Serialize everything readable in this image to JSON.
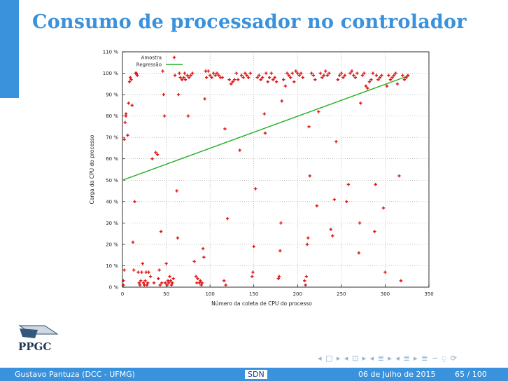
{
  "slide": {
    "title": "Consumo de processador no controlador"
  },
  "footer": {
    "author": "Gustavo Pantuza (DCC - UFMG)",
    "short_title": "SDN",
    "date": "06 de Julho de 2015",
    "page": "65 / 100"
  },
  "logo": {
    "text": "PPGC"
  },
  "nav": {
    "symbols": "◂ □ ▸  ◂ ⊡ ▸  ◂ ≣ ▸  ◂ ≣ ▸   ≣   ∽ ⍜ ⟳"
  },
  "colors": {
    "accent": "#3a91dc",
    "series_sample": "#e01818",
    "series_regression": "#20b020"
  },
  "chart_data": {
    "type": "scatter",
    "xlabel": "Número da coleta de CPU do processo",
    "ylabel": "Carga da CPU do processo",
    "xlim": [
      0,
      350
    ],
    "ylim": [
      0,
      110
    ],
    "x_ticks": [
      0,
      50,
      100,
      150,
      200,
      250,
      300,
      350
    ],
    "y_ticks": [
      0,
      10,
      20,
      30,
      40,
      50,
      60,
      70,
      80,
      90,
      100,
      110
    ],
    "x_tick_labels": [
      "0",
      "50",
      "100",
      "150",
      "200",
      "250",
      "300",
      "350"
    ],
    "y_tick_labels": [
      "0 %",
      "10 %",
      "20 %",
      "30 %",
      "40 %",
      "50 %",
      "60 %",
      "70 %",
      "80 %",
      "90 %",
      "100 %",
      "110 %"
    ],
    "grid": true,
    "legend_position": "top-left",
    "series": [
      {
        "name": "Amostra",
        "kind": "points",
        "points": [
          [
            1,
            1
          ],
          [
            1,
            3
          ],
          [
            2,
            69
          ],
          [
            2,
            8
          ],
          [
            3,
            77
          ],
          [
            4,
            80
          ],
          [
            4,
            81
          ],
          [
            6,
            71
          ],
          [
            7,
            86
          ],
          [
            8,
            96
          ],
          [
            9,
            98
          ],
          [
            10,
            97
          ],
          [
            11,
            85
          ],
          [
            12,
            21
          ],
          [
            13,
            8
          ],
          [
            14,
            40
          ],
          [
            15,
            100
          ],
          [
            16,
            100
          ],
          [
            17,
            99
          ],
          [
            18,
            7
          ],
          [
            19,
            2
          ],
          [
            20,
            1
          ],
          [
            21,
            3
          ],
          [
            22,
            7
          ],
          [
            23,
            11
          ],
          [
            24,
            2
          ],
          [
            25,
            1
          ],
          [
            26,
            3
          ],
          [
            27,
            7
          ],
          [
            28,
            1
          ],
          [
            29,
            2
          ],
          [
            30,
            7
          ],
          [
            32,
            5
          ],
          [
            34,
            60
          ],
          [
            36,
            2
          ],
          [
            38,
            63
          ],
          [
            40,
            62
          ],
          [
            41,
            4
          ],
          [
            42,
            8
          ],
          [
            43,
            1
          ],
          [
            44,
            26
          ],
          [
            45,
            2
          ],
          [
            46,
            101
          ],
          [
            47,
            90
          ],
          [
            48,
            80
          ],
          [
            49,
            2
          ],
          [
            50,
            11
          ],
          [
            51,
            1
          ],
          [
            52,
            3
          ],
          [
            53,
            2
          ],
          [
            54,
            5
          ],
          [
            55,
            3
          ],
          [
            56,
            1
          ],
          [
            57,
            2
          ],
          [
            58,
            4
          ],
          [
            60,
            99
          ],
          [
            62,
            45
          ],
          [
            63,
            23
          ],
          [
            64,
            90
          ],
          [
            65,
            100
          ],
          [
            66,
            98
          ],
          [
            68,
            97
          ],
          [
            70,
            98
          ],
          [
            71,
            100
          ],
          [
            72,
            97
          ],
          [
            74,
            99
          ],
          [
            75,
            80
          ],
          [
            76,
            98
          ],
          [
            78,
            99
          ],
          [
            80,
            100
          ],
          [
            82,
            12
          ],
          [
            84,
            5
          ],
          [
            85,
            2
          ],
          [
            86,
            4
          ],
          [
            88,
            2
          ],
          [
            89,
            3
          ],
          [
            90,
            1
          ],
          [
            91,
            2
          ],
          [
            92,
            18
          ],
          [
            93,
            14
          ],
          [
            94,
            88
          ],
          [
            95,
            101
          ],
          [
            96,
            98
          ],
          [
            98,
            101
          ],
          [
            100,
            99
          ],
          [
            102,
            98
          ],
          [
            104,
            100
          ],
          [
            106,
            99
          ],
          [
            108,
            100
          ],
          [
            110,
            99
          ],
          [
            112,
            98
          ],
          [
            114,
            98
          ],
          [
            116,
            3
          ],
          [
            117,
            74
          ],
          [
            118,
            1
          ],
          [
            120,
            32
          ],
          [
            122,
            97
          ],
          [
            124,
            95
          ],
          [
            126,
            96
          ],
          [
            128,
            97
          ],
          [
            130,
            100
          ],
          [
            132,
            97
          ],
          [
            134,
            64
          ],
          [
            136,
            99
          ],
          [
            138,
            98
          ],
          [
            140,
            100
          ],
          [
            142,
            99
          ],
          [
            144,
            98
          ],
          [
            146,
            100
          ],
          [
            148,
            5
          ],
          [
            149,
            7
          ],
          [
            150,
            19
          ],
          [
            152,
            46
          ],
          [
            154,
            98
          ],
          [
            156,
            99
          ],
          [
            158,
            97
          ],
          [
            160,
            98
          ],
          [
            162,
            81
          ],
          [
            163,
            72
          ],
          [
            164,
            100
          ],
          [
            166,
            96
          ],
          [
            168,
            98
          ],
          [
            170,
            100
          ],
          [
            172,
            97
          ],
          [
            174,
            98
          ],
          [
            176,
            96
          ],
          [
            178,
            4
          ],
          [
            179,
            5
          ],
          [
            180,
            17
          ],
          [
            181,
            30
          ],
          [
            182,
            87
          ],
          [
            184,
            97
          ],
          [
            186,
            94
          ],
          [
            188,
            100
          ],
          [
            190,
            99
          ],
          [
            192,
            98
          ],
          [
            194,
            100
          ],
          [
            196,
            96
          ],
          [
            198,
            101
          ],
          [
            200,
            100
          ],
          [
            202,
            99
          ],
          [
            204,
            100
          ],
          [
            206,
            98
          ],
          [
            208,
            3
          ],
          [
            209,
            1
          ],
          [
            210,
            5
          ],
          [
            211,
            20
          ],
          [
            212,
            23
          ],
          [
            213,
            75
          ],
          [
            214,
            52
          ],
          [
            216,
            100
          ],
          [
            218,
            99
          ],
          [
            220,
            97
          ],
          [
            222,
            38
          ],
          [
            224,
            82
          ],
          [
            226,
            100
          ],
          [
            228,
            98
          ],
          [
            230,
            99
          ],
          [
            232,
            101
          ],
          [
            234,
            99
          ],
          [
            236,
            100
          ],
          [
            238,
            27
          ],
          [
            240,
            24
          ],
          [
            242,
            41
          ],
          [
            244,
            68
          ],
          [
            246,
            97
          ],
          [
            248,
            99
          ],
          [
            250,
            100
          ],
          [
            252,
            98
          ],
          [
            254,
            99
          ],
          [
            256,
            40
          ],
          [
            258,
            48
          ],
          [
            260,
            100
          ],
          [
            262,
            101
          ],
          [
            264,
            99
          ],
          [
            266,
            98
          ],
          [
            268,
            100
          ],
          [
            270,
            16
          ],
          [
            271,
            30
          ],
          [
            272,
            86
          ],
          [
            274,
            99
          ],
          [
            276,
            100
          ],
          [
            278,
            94
          ],
          [
            280,
            93
          ],
          [
            282,
            96
          ],
          [
            284,
            97
          ],
          [
            286,
            100
          ],
          [
            288,
            26
          ],
          [
            289,
            48
          ],
          [
            290,
            99
          ],
          [
            292,
            97
          ],
          [
            294,
            98
          ],
          [
            296,
            99
          ],
          [
            298,
            37
          ],
          [
            300,
            7
          ],
          [
            302,
            94
          ],
          [
            304,
            99
          ],
          [
            306,
            97
          ],
          [
            308,
            98
          ],
          [
            310,
            99
          ],
          [
            312,
            100
          ],
          [
            314,
            95
          ],
          [
            316,
            52
          ],
          [
            318,
            3
          ],
          [
            320,
            99
          ],
          [
            322,
            97
          ],
          [
            324,
            98
          ],
          [
            326,
            99
          ]
        ]
      },
      {
        "name": "Regressão",
        "kind": "line",
        "points": [
          [
            0,
            50
          ],
          [
            328,
            99
          ]
        ]
      }
    ]
  }
}
